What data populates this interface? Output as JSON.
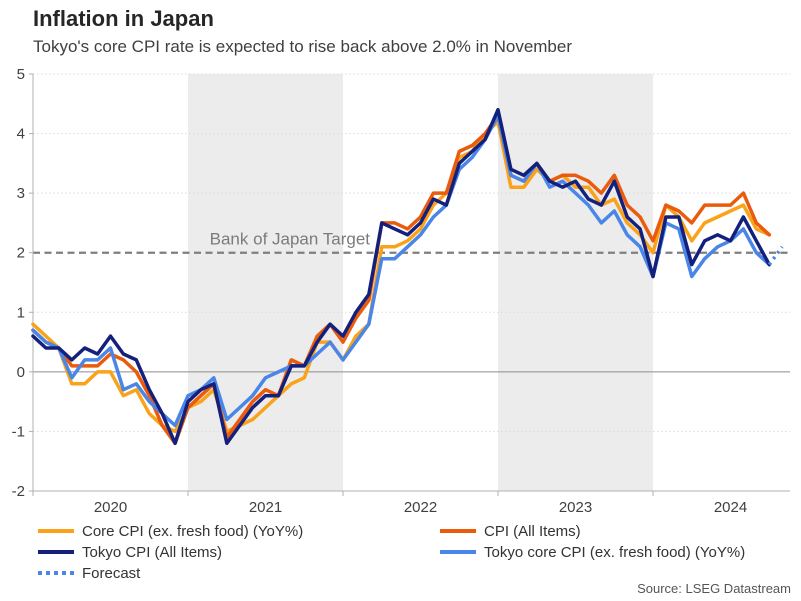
{
  "header": {
    "title": "Inflation in Japan",
    "subtitle": "Tokyo's core CPI rate is expected to rise back above 2.0% in November"
  },
  "source": "Source: LSEG Datastream",
  "colors": {
    "band": "#ececec",
    "grid_dotted": "#d9d9d9",
    "zero_line": "#8c8c8c",
    "axis": "#b0b0b0",
    "target_line": "#7f7f7f",
    "annotation_text": "#7b7b7b",
    "tick_label": "#404040"
  },
  "legend": {
    "items": [
      {
        "label": "Core CPI (ex. fresh food) (YoY%)",
        "series": "core_cpi"
      },
      {
        "label": "Tokyo CPI (All Items)",
        "series": "tokyo_cpi"
      },
      {
        "label": "Forecast",
        "series": "forecast"
      },
      {
        "label": "CPI (All Items)",
        "series": "cpi_all"
      },
      {
        "label": "Tokyo core CPI (ex. fresh food) (YoY%)",
        "series": "tokyo_core"
      }
    ]
  },
  "chart_data": {
    "type": "line",
    "title": "Inflation in Japan",
    "x_monthly_start": "2020-01",
    "x_monthly_end": "2024-11",
    "x_tick_years": [
      2020,
      2021,
      2022,
      2023,
      2024
    ],
    "shaded_year_bands": [
      2021,
      2023
    ],
    "ylim": [
      -2,
      5
    ],
    "y_ticks": [
      -2,
      -1,
      0,
      1,
      2,
      3,
      4,
      5
    ],
    "grid": "dotted-horizontal",
    "legend_position": "bottom",
    "target_line": {
      "value": 2.0,
      "label": "Bank of Japan Target"
    },
    "series": [
      {
        "id": "core_cpi",
        "name": "Core CPI (ex. fresh food) (YoY%)",
        "color": "#F9A21A",
        "style": "solid",
        "start_index": 0,
        "values": [
          0.8,
          0.6,
          0.4,
          -0.2,
          -0.2,
          0.0,
          0.0,
          -0.4,
          -0.3,
          -0.7,
          -0.9,
          -1.0,
          -0.6,
          -0.5,
          -0.3,
          -1.0,
          -0.9,
          -0.8,
          -0.6,
          -0.4,
          -0.2,
          -0.1,
          0.5,
          0.5,
          0.2,
          0.6,
          0.8,
          2.1,
          2.1,
          2.2,
          2.4,
          2.8,
          3.0,
          3.6,
          3.7,
          4.0,
          4.2,
          3.1,
          3.1,
          3.4,
          3.2,
          3.3,
          3.1,
          3.1,
          2.8,
          2.9,
          2.5,
          2.3,
          2.0,
          2.8,
          2.6,
          2.2,
          2.5,
          2.6,
          2.7,
          2.8,
          2.4,
          2.3
        ]
      },
      {
        "id": "cpi_all",
        "name": "CPI (All Items)",
        "color": "#EA5B0C",
        "style": "solid",
        "start_index": 0,
        "values": [
          0.7,
          0.5,
          0.4,
          0.1,
          0.1,
          0.1,
          0.3,
          0.2,
          0.0,
          -0.4,
          -0.9,
          -1.2,
          -0.6,
          -0.4,
          -0.2,
          -1.1,
          -0.8,
          -0.5,
          -0.3,
          -0.4,
          0.2,
          0.1,
          0.6,
          0.8,
          0.5,
          0.9,
          1.2,
          2.5,
          2.5,
          2.4,
          2.6,
          3.0,
          3.0,
          3.7,
          3.8,
          4.0,
          4.3,
          3.3,
          3.2,
          3.5,
          3.2,
          3.3,
          3.3,
          3.2,
          3.0,
          3.3,
          2.8,
          2.6,
          2.2,
          2.8,
          2.7,
          2.5,
          2.8,
          2.8,
          2.8,
          3.0,
          2.5,
          2.3
        ]
      },
      {
        "id": "tokyo_core",
        "name": "Tokyo core CPI (ex. fresh food) (YoY%)",
        "color": "#4A86E8",
        "style": "solid",
        "start_index": 0,
        "values": [
          0.7,
          0.5,
          0.4,
          -0.1,
          0.2,
          0.2,
          0.4,
          -0.3,
          -0.2,
          -0.5,
          -0.7,
          -0.9,
          -0.4,
          -0.3,
          -0.1,
          -0.8,
          -0.6,
          -0.4,
          -0.1,
          0.0,
          0.1,
          0.1,
          0.3,
          0.5,
          0.2,
          0.5,
          0.8,
          1.9,
          1.9,
          2.1,
          2.3,
          2.6,
          2.8,
          3.4,
          3.6,
          3.9,
          4.3,
          3.3,
          3.2,
          3.5,
          3.1,
          3.2,
          3.0,
          2.8,
          2.5,
          2.7,
          2.3,
          2.1,
          1.6,
          2.5,
          2.4,
          1.6,
          1.9,
          2.1,
          2.2,
          2.4,
          2.0,
          1.8
        ]
      },
      {
        "id": "tokyo_cpi",
        "name": "Tokyo CPI (All Items)",
        "color": "#14217C",
        "style": "solid",
        "start_index": 0,
        "values": [
          0.6,
          0.4,
          0.4,
          0.2,
          0.4,
          0.3,
          0.6,
          0.3,
          0.2,
          -0.3,
          -0.7,
          -1.2,
          -0.5,
          -0.3,
          -0.2,
          -1.2,
          -0.9,
          -0.6,
          -0.4,
          -0.4,
          0.1,
          0.1,
          0.5,
          0.8,
          0.6,
          1.0,
          1.3,
          2.5,
          2.4,
          2.3,
          2.5,
          2.9,
          2.8,
          3.5,
          3.7,
          3.9,
          4.4,
          3.4,
          3.3,
          3.5,
          3.2,
          3.1,
          3.2,
          2.9,
          2.8,
          3.2,
          2.6,
          2.4,
          1.6,
          2.6,
          2.6,
          1.8,
          2.2,
          2.3,
          2.2,
          2.6,
          2.2,
          1.8
        ]
      },
      {
        "id": "forecast",
        "name": "Forecast",
        "color": "#4A86E8",
        "style": "dotted",
        "start_index": 57,
        "values": [
          1.8,
          2.1
        ]
      }
    ]
  }
}
